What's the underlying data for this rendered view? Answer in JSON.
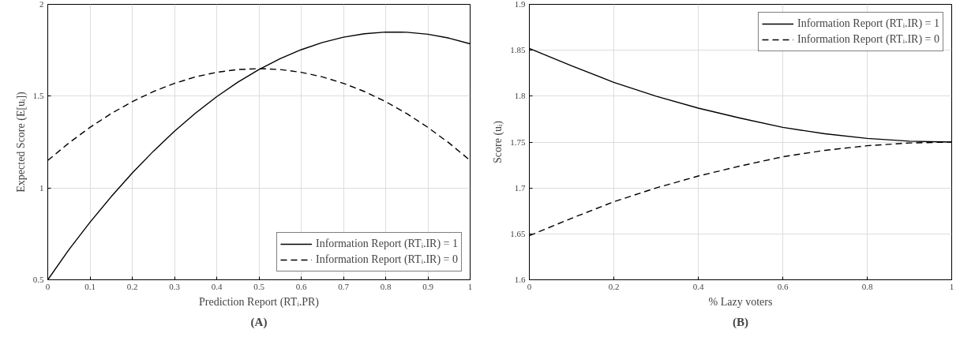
{
  "chart_data": [
    {
      "type": "line",
      "title": "(A)",
      "xlabel": "Prediction Report (RTᵢ.PR)",
      "ylabel": "Expected Score (E[uᵢ])",
      "x": [
        0,
        0.05,
        0.1,
        0.15,
        0.2,
        0.25,
        0.3,
        0.35,
        0.4,
        0.45,
        0.5,
        0.55,
        0.6,
        0.65,
        0.7,
        0.75,
        0.8,
        0.85,
        0.9,
        0.95,
        1
      ],
      "series": [
        {
          "name": "Information Report (RTᵢ.IR) = 1",
          "color": "#000000",
          "line_style": "solid",
          "values": [
            0.5,
            0.664,
            0.813,
            0.952,
            1.081,
            1.2,
            1.309,
            1.408,
            1.497,
            1.576,
            1.645,
            1.704,
            1.753,
            1.792,
            1.821,
            1.84,
            1.849,
            1.848,
            1.837,
            1.816,
            1.785
          ]
        },
        {
          "name": "Information Report (RTᵢ.IR) = 0",
          "color": "#000000",
          "line_style": "dashed",
          "values": [
            1.15,
            1.245,
            1.33,
            1.405,
            1.47,
            1.525,
            1.57,
            1.605,
            1.63,
            1.645,
            1.65,
            1.645,
            1.63,
            1.605,
            1.57,
            1.525,
            1.47,
            1.405,
            1.33,
            1.245,
            1.15
          ]
        }
      ],
      "xlim": [
        0,
        1
      ],
      "xticks": [
        0,
        0.1,
        0.2,
        0.3,
        0.4,
        0.5,
        0.6,
        0.7,
        0.8,
        0.9,
        1
      ],
      "ylim": [
        0.5,
        2
      ],
      "yticks": [
        0.5,
        1,
        1.5,
        2
      ],
      "grid": true,
      "legend": "bottom right",
      "marker": "none"
    },
    {
      "type": "line",
      "title": "(B)",
      "xlabel": "% Lazy voters",
      "ylabel": "Score (uᵢ)",
      "x": [
        0,
        0.1,
        0.2,
        0.3,
        0.4,
        0.5,
        0.6,
        0.7,
        0.8,
        0.9,
        1
      ],
      "series": [
        {
          "name": "Information Report (RTᵢ.IR) = 1",
          "color": "#000000",
          "line_style": "solid",
          "values": [
            1.852,
            1.833,
            1.815,
            1.8,
            1.787,
            1.776,
            1.766,
            1.759,
            1.754,
            1.751,
            1.75
          ]
        },
        {
          "name": "Information Report (RTᵢ.IR) = 0",
          "color": "#000000",
          "line_style": "dashed",
          "values": [
            1.648,
            1.667,
            1.685,
            1.7,
            1.713,
            1.724,
            1.734,
            1.741,
            1.746,
            1.749,
            1.75
          ]
        }
      ],
      "xlim": [
        0,
        1
      ],
      "xticks": [
        0,
        0.2,
        0.4,
        0.6,
        0.8,
        1
      ],
      "ylim": [
        1.6,
        1.9
      ],
      "yticks": [
        1.6,
        1.65,
        1.7,
        1.75,
        1.8,
        1.85,
        1.9
      ],
      "grid": true,
      "legend": "top right",
      "marker": "none"
    }
  ]
}
